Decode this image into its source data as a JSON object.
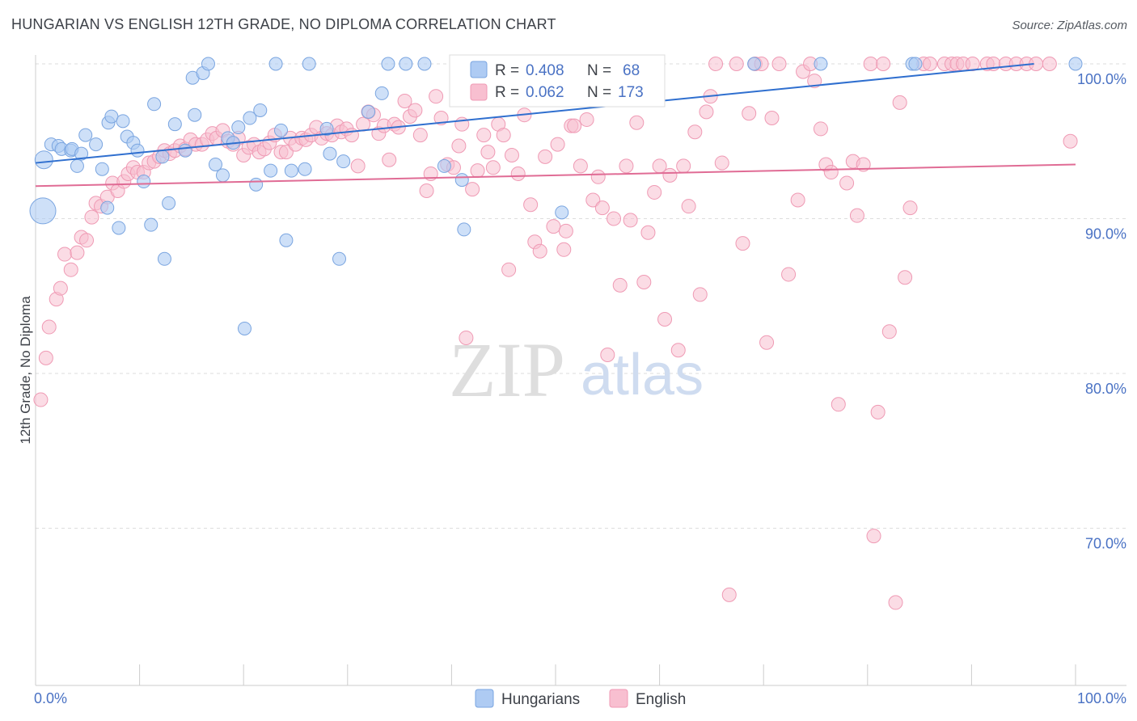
{
  "title": "HUNGARIAN VS ENGLISH 12TH GRADE, NO DIPLOMA CORRELATION CHART",
  "source": "Source: ZipAtlas.com",
  "watermark": {
    "zip": "ZIP",
    "atlas": "atlas"
  },
  "colors": {
    "hungarians_fill": "#aecbf3",
    "hungarians_stroke": "#7aa5e0",
    "hungarians_line": "#2f6fcf",
    "english_fill": "#f8bfd0",
    "english_stroke": "#ef9ab4",
    "english_line": "#e06c95",
    "grid": "#dddddd",
    "axis": "#cccccc",
    "tick_label": "#4a72c4"
  },
  "stats": {
    "hungarians": {
      "r_label": "R =",
      "r_value": "0.408",
      "n_label": "N =",
      "n_value": "68"
    },
    "english": {
      "r_label": "R =",
      "r_value": "0.062",
      "n_label": "N =",
      "n_value": "173"
    }
  },
  "chart_data": {
    "type": "scatter",
    "title": "HUNGARIAN VS ENGLISH 12TH GRADE, NO DIPLOMA CORRELATION CHART",
    "xlabel": "",
    "ylabel": "12th Grade, No Diploma",
    "xlim": [
      0,
      100
    ],
    "ylim": [
      60,
      100
    ],
    "x_tick_labels": [
      "0.0%",
      "100.0%"
    ],
    "y_ticks": [
      70,
      80,
      90,
      100
    ],
    "y_tick_labels": [
      "70.0%",
      "80.0%",
      "90.0%",
      "100.0%"
    ],
    "grid": true,
    "legend_position": "bottom-center",
    "series": [
      {
        "name": "Hungarians",
        "trend": {
          "x": [
            0,
            100
          ],
          "y": [
            93.6,
            100.1
          ]
        },
        "points": [
          [
            0.8,
            93.8
          ],
          [
            0.7,
            90.5
          ],
          [
            1.5,
            94.8
          ],
          [
            2.2,
            94.7
          ],
          [
            2.5,
            94.5
          ],
          [
            3.4,
            94.4
          ],
          [
            3.5,
            94.5
          ],
          [
            4.0,
            93.4
          ],
          [
            4.4,
            94.2
          ],
          [
            4.8,
            95.4
          ],
          [
            5.8,
            94.8
          ],
          [
            6.4,
            93.2
          ],
          [
            6.9,
            90.7
          ],
          [
            7.0,
            96.2
          ],
          [
            7.3,
            96.6
          ],
          [
            8.0,
            89.4
          ],
          [
            8.4,
            96.3
          ],
          [
            8.8,
            95.3
          ],
          [
            9.4,
            94.9
          ],
          [
            9.8,
            94.4
          ],
          [
            10.4,
            92.4
          ],
          [
            11.1,
            89.6
          ],
          [
            11.4,
            97.4
          ],
          [
            12.2,
            94.0
          ],
          [
            12.4,
            87.4
          ],
          [
            12.8,
            91.0
          ],
          [
            13.4,
            96.1
          ],
          [
            14.4,
            94.4
          ],
          [
            15.1,
            99.1
          ],
          [
            15.3,
            96.7
          ],
          [
            16.1,
            99.4
          ],
          [
            16.6,
            100
          ],
          [
            17.3,
            93.5
          ],
          [
            18.0,
            92.8
          ],
          [
            18.5,
            95.2
          ],
          [
            19.0,
            94.9
          ],
          [
            19.5,
            95.9
          ],
          [
            20.1,
            82.9
          ],
          [
            20.6,
            96.5
          ],
          [
            21.2,
            92.2
          ],
          [
            21.6,
            97.0
          ],
          [
            22.6,
            93.1
          ],
          [
            23.1,
            100
          ],
          [
            23.6,
            95.7
          ],
          [
            24.1,
            88.6
          ],
          [
            24.6,
            93.1
          ],
          [
            25.9,
            93.2
          ],
          [
            26.3,
            100
          ],
          [
            28.0,
            95.8
          ],
          [
            28.3,
            94.2
          ],
          [
            29.2,
            87.4
          ],
          [
            29.6,
            93.7
          ],
          [
            32.0,
            96.9
          ],
          [
            33.3,
            98.1
          ],
          [
            33.9,
            100
          ],
          [
            35.6,
            100
          ],
          [
            37.4,
            100
          ],
          [
            39.3,
            93.4
          ],
          [
            41.0,
            92.5
          ],
          [
            41.2,
            89.3
          ],
          [
            50.6,
            90.4
          ],
          [
            53.6,
            100
          ],
          [
            69.1,
            100
          ],
          [
            75.5,
            100
          ],
          [
            84.3,
            100
          ],
          [
            84.6,
            100
          ],
          [
            100.0,
            100
          ]
        ]
      },
      {
        "name": "English",
        "trend": {
          "x": [
            0,
            100
          ],
          "y": [
            92.1,
            93.5
          ]
        },
        "points": [
          [
            0.5,
            78.3
          ],
          [
            1.0,
            81.0
          ],
          [
            1.3,
            83.0
          ],
          [
            2.0,
            84.8
          ],
          [
            2.4,
            85.5
          ],
          [
            2.8,
            87.7
          ],
          [
            3.4,
            86.7
          ],
          [
            4.0,
            87.8
          ],
          [
            4.4,
            88.8
          ],
          [
            4.9,
            88.6
          ],
          [
            5.4,
            90.1
          ],
          [
            5.8,
            91.0
          ],
          [
            6.3,
            90.8
          ],
          [
            6.9,
            91.4
          ],
          [
            7.4,
            92.3
          ],
          [
            7.9,
            91.8
          ],
          [
            8.5,
            92.4
          ],
          [
            8.9,
            92.9
          ],
          [
            9.4,
            93.3
          ],
          [
            9.8,
            93.0
          ],
          [
            10.4,
            93.0
          ],
          [
            10.9,
            93.6
          ],
          [
            11.4,
            93.7
          ],
          [
            11.9,
            94.0
          ],
          [
            12.4,
            94.4
          ],
          [
            12.9,
            94.2
          ],
          [
            13.4,
            94.4
          ],
          [
            13.9,
            94.7
          ],
          [
            14.4,
            94.5
          ],
          [
            14.9,
            95.1
          ],
          [
            15.4,
            94.8
          ],
          [
            16.0,
            94.8
          ],
          [
            16.5,
            95.1
          ],
          [
            17.0,
            95.5
          ],
          [
            17.4,
            95.2
          ],
          [
            18.0,
            95.7
          ],
          [
            18.5,
            95.0
          ],
          [
            19.0,
            94.8
          ],
          [
            19.5,
            95.2
          ],
          [
            20.0,
            94.1
          ],
          [
            20.5,
            94.6
          ],
          [
            21.0,
            94.8
          ],
          [
            21.5,
            94.3
          ],
          [
            22.0,
            94.5
          ],
          [
            22.5,
            94.9
          ],
          [
            23.0,
            95.4
          ],
          [
            23.6,
            94.3
          ],
          [
            24.1,
            94.3
          ],
          [
            24.5,
            95.2
          ],
          [
            25.0,
            94.8
          ],
          [
            25.6,
            95.2
          ],
          [
            26.0,
            95.1
          ],
          [
            26.5,
            95.4
          ],
          [
            27.0,
            95.9
          ],
          [
            27.5,
            95.2
          ],
          [
            28.0,
            95.5
          ],
          [
            28.5,
            95.4
          ],
          [
            29.0,
            96.0
          ],
          [
            29.4,
            95.6
          ],
          [
            29.9,
            95.8
          ],
          [
            30.4,
            95.4
          ],
          [
            31.0,
            93.4
          ],
          [
            31.5,
            96.1
          ],
          [
            32.0,
            96.9
          ],
          [
            32.5,
            96.7
          ],
          [
            33.0,
            95.5
          ],
          [
            33.5,
            96.0
          ],
          [
            34.0,
            93.8
          ],
          [
            34.5,
            96.1
          ],
          [
            34.9,
            95.9
          ],
          [
            35.5,
            97.6
          ],
          [
            36.0,
            96.6
          ],
          [
            36.5,
            97.0
          ],
          [
            37.0,
            95.4
          ],
          [
            37.6,
            91.8
          ],
          [
            38.0,
            92.9
          ],
          [
            38.5,
            97.9
          ],
          [
            39.0,
            96.5
          ],
          [
            39.6,
            93.5
          ],
          [
            40.2,
            93.3
          ],
          [
            40.7,
            94.7
          ],
          [
            41.0,
            96.1
          ],
          [
            41.4,
            82.3
          ],
          [
            42.0,
            91.9
          ],
          [
            42.5,
            93.1
          ],
          [
            43.1,
            95.4
          ],
          [
            43.5,
            94.3
          ],
          [
            44.0,
            93.3
          ],
          [
            44.5,
            96.1
          ],
          [
            45.0,
            95.4
          ],
          [
            45.5,
            86.7
          ],
          [
            45.8,
            94.1
          ],
          [
            46.4,
            92.9
          ],
          [
            47.0,
            96.7
          ],
          [
            47.6,
            90.9
          ],
          [
            48.0,
            88.5
          ],
          [
            48.5,
            87.9
          ],
          [
            49.0,
            94.0
          ],
          [
            49.8,
            89.5
          ],
          [
            50.2,
            94.8
          ],
          [
            50.8,
            88.0
          ],
          [
            51.0,
            89.2
          ],
          [
            51.5,
            96.0
          ],
          [
            51.8,
            96.0
          ],
          [
            52.4,
            93.4
          ],
          [
            53.0,
            96.4
          ],
          [
            53.6,
            91.2
          ],
          [
            54.1,
            92.7
          ],
          [
            54.5,
            90.7
          ],
          [
            55.0,
            81.2
          ],
          [
            55.6,
            90.0
          ],
          [
            56.2,
            85.7
          ],
          [
            56.8,
            93.4
          ],
          [
            57.2,
            89.9
          ],
          [
            57.8,
            96.2
          ],
          [
            58.5,
            85.9
          ],
          [
            58.9,
            89.1
          ],
          [
            59.5,
            91.7
          ],
          [
            60.0,
            93.4
          ],
          [
            60.5,
            83.5
          ],
          [
            61.0,
            92.8
          ],
          [
            61.8,
            81.5
          ],
          [
            62.3,
            93.4
          ],
          [
            62.8,
            90.8
          ],
          [
            63.4,
            95.6
          ],
          [
            63.9,
            85.1
          ],
          [
            64.5,
            96.9
          ],
          [
            64.9,
            97.9
          ],
          [
            65.4,
            100
          ],
          [
            66.0,
            93.6
          ],
          [
            66.7,
            65.7
          ],
          [
            67.4,
            100
          ],
          [
            68.0,
            88.4
          ],
          [
            68.6,
            96.8
          ],
          [
            69.2,
            100
          ],
          [
            69.8,
            100
          ],
          [
            70.3,
            82.0
          ],
          [
            70.8,
            96.5
          ],
          [
            71.5,
            100
          ],
          [
            72.4,
            86.4
          ],
          [
            73.3,
            91.2
          ],
          [
            73.8,
            99.5
          ],
          [
            74.5,
            100
          ],
          [
            74.9,
            98.9
          ],
          [
            75.5,
            95.8
          ],
          [
            76.0,
            93.5
          ],
          [
            76.5,
            93.0
          ],
          [
            77.2,
            78.0
          ],
          [
            78.0,
            92.3
          ],
          [
            78.6,
            93.7
          ],
          [
            79.0,
            90.2
          ],
          [
            79.6,
            93.5
          ],
          [
            80.3,
            100
          ],
          [
            80.6,
            69.5
          ],
          [
            81.0,
            77.5
          ],
          [
            81.5,
            100
          ],
          [
            82.1,
            82.7
          ],
          [
            82.7,
            65.2
          ],
          [
            83.1,
            97.5
          ],
          [
            83.6,
            86.2
          ],
          [
            84.1,
            90.7
          ],
          [
            85.4,
            100
          ],
          [
            86.0,
            100
          ],
          [
            87.4,
            100
          ],
          [
            88.1,
            100
          ],
          [
            88.6,
            100
          ],
          [
            89.2,
            100
          ],
          [
            90.1,
            100
          ],
          [
            91.5,
            100
          ],
          [
            92.1,
            100
          ],
          [
            93.3,
            100
          ],
          [
            94.3,
            100
          ],
          [
            95.3,
            100
          ],
          [
            96.2,
            100
          ],
          [
            97.5,
            100
          ],
          [
            99.5,
            95.0
          ]
        ]
      }
    ]
  },
  "legend": {
    "items": [
      {
        "label": "Hungarians"
      },
      {
        "label": "English"
      }
    ]
  }
}
